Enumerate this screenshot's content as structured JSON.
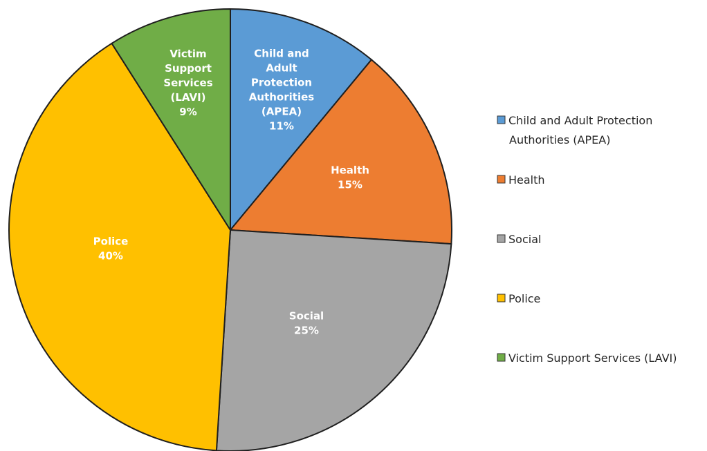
{
  "chart_data": {
    "type": "pie",
    "title": "",
    "start_angle_deg": 0,
    "direction": "clockwise",
    "legend_position": "right",
    "slices": [
      {
        "key": "apea",
        "label_lines": [
          "Child and",
          "Adult",
          "Protection",
          "Authorities",
          "(APEA)"
        ],
        "pct_label": "11%",
        "value": 11,
        "color": "#5b9bd5",
        "legend_lines": [
          "Child and Adult Protection",
          "Authorities  (APEA)"
        ]
      },
      {
        "key": "health",
        "label_lines": [
          "Health"
        ],
        "pct_label": "15%",
        "value": 15,
        "color": "#ed7d31",
        "legend_lines": [
          "Health"
        ]
      },
      {
        "key": "social",
        "label_lines": [
          "Social"
        ],
        "pct_label": "25%",
        "value": 25,
        "color": "#a5a5a5",
        "legend_lines": [
          "Social"
        ]
      },
      {
        "key": "police",
        "label_lines": [
          "Police"
        ],
        "pct_label": "40%",
        "value": 40,
        "color": "#ffc000",
        "legend_lines": [
          "Police"
        ]
      },
      {
        "key": "lavi",
        "label_lines": [
          "Victim",
          "Support",
          "Services",
          "(LAVI)"
        ],
        "pct_label": "9%",
        "value": 9,
        "color": "#70ad47",
        "legend_lines": [
          "Victim Support  Services (LAVI)"
        ]
      }
    ]
  }
}
